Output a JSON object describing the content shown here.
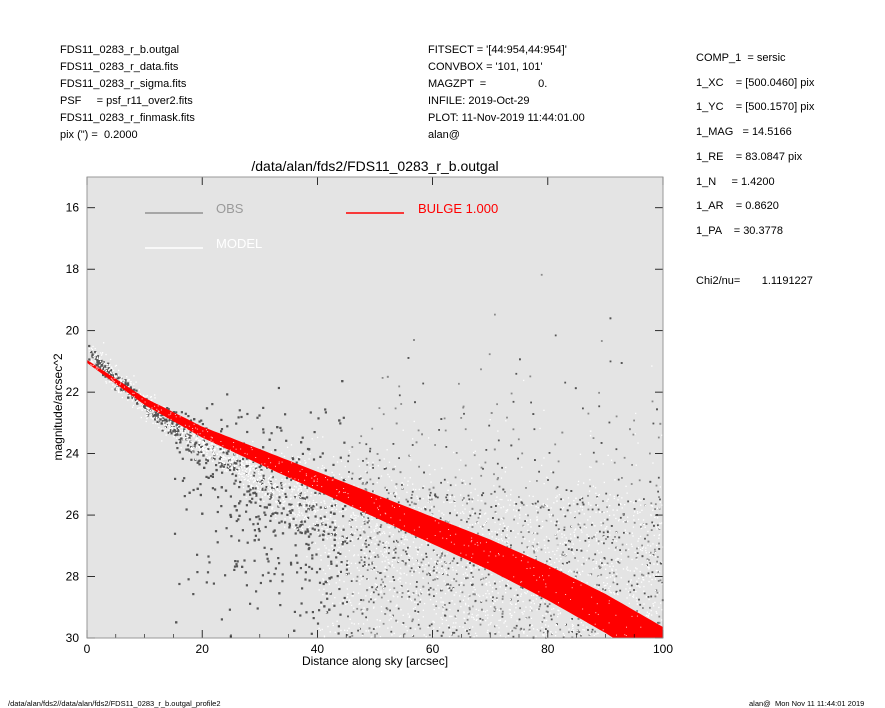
{
  "header_left": [
    "FDS11_0283_r_b.outgal",
    "FDS11_0283_r_data.fits",
    "FDS11_0283_r_sigma.fits",
    "PSF     = psf_r11_over2.fits",
    "FDS11_0283_r_finmask.fits",
    "pix (\") =  0.2000"
  ],
  "header_mid": [
    "FITSECT = '[44:954,44:954]'",
    "CONVBOX = '101, 101'",
    "MAGZPT  =                 0.",
    "INFILE: 2019-Oct-29",
    "PLOT: 11-Nov-2019 11:44:01.00",
    "alan@"
  ],
  "params": [
    "COMP_1  = sersic",
    "1_XC    = [500.0460] pix",
    "1_YC    = [500.1570] pix",
    "1_MAG   = 14.5166",
    "1_RE    = 83.0847 pix",
    "1_N     = 1.4200",
    "1_AR    = 0.8620",
    "1_PA    = 30.3778"
  ],
  "chi2": "Chi2/nu=       1.1191227",
  "footer_left": "/data/alan/fds2//data/alan/fds2/FDS11_0283_r_b.outgal_profile2",
  "footer_right": "alan@  Mon Nov 11 11:44:01 2019",
  "colors": {
    "plot_background": "#e4e4e4",
    "obs": "#555555",
    "model": "#ffffff",
    "bulge": "#ff0000"
  },
  "chart_data": {
    "type": "scatter",
    "title": "/data/alan/fds2/FDS11_0283_r_b.outgal",
    "xlabel": "Distance along sky [arcsec]",
    "ylabel": "magnitude/arcsec^2",
    "xlim": [
      0,
      100
    ],
    "ylim": [
      30,
      15
    ],
    "xticks": [
      "0",
      "20",
      "40",
      "60",
      "80",
      "100"
    ],
    "yticks": [
      "16",
      "18",
      "20",
      "22",
      "24",
      "26",
      "28",
      "30"
    ],
    "legend": [
      {
        "label": "OBS",
        "color": "#808080"
      },
      {
        "label": "BULGE  1.000",
        "color": "#ff0000"
      },
      {
        "label": "MODEL",
        "color": "#ffffff"
      }
    ],
    "series": [
      {
        "name": "OBS",
        "profile_points": [
          [
            0.5,
            20.7
          ],
          [
            5,
            21.6
          ],
          [
            10,
            22.4
          ],
          [
            15,
            23.1
          ],
          [
            20,
            23.7
          ],
          [
            25,
            24.2
          ],
          [
            30,
            24.8
          ],
          [
            40,
            25.6
          ],
          [
            50,
            26.3
          ],
          [
            60,
            27.0
          ],
          [
            70,
            27.7
          ],
          [
            80,
            28.4
          ],
          [
            90,
            29.3
          ]
        ]
      },
      {
        "name": "BULGE  1.000",
        "band_center": [
          [
            0,
            21.0
          ],
          [
            10,
            22.3
          ],
          [
            20,
            23.3
          ],
          [
            30,
            24.1
          ],
          [
            40,
            24.9
          ],
          [
            50,
            25.7
          ],
          [
            60,
            26.5
          ],
          [
            70,
            27.3
          ],
          [
            80,
            28.2
          ],
          [
            90,
            29.2
          ],
          [
            97,
            30.0
          ]
        ]
      }
    ],
    "grid": false,
    "legend_placement": "top-left inside plot"
  }
}
